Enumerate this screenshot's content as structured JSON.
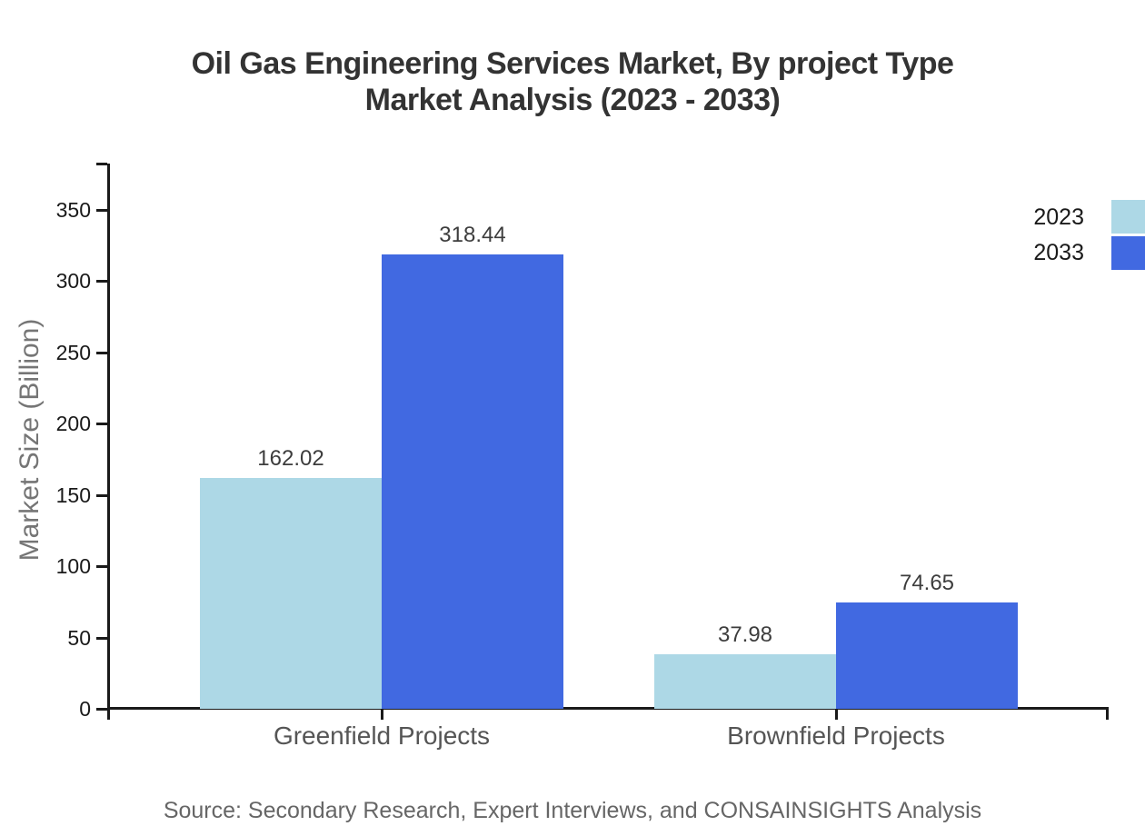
{
  "title": {
    "line1": "Oil Gas Engineering Services Market, By project Type",
    "line2": "Market Analysis (2023 - 2033)"
  },
  "source": "Source: Secondary Research, Expert Interviews, and CONSAINSIGHTS Analysis",
  "chart_data": {
    "type": "bar",
    "title": "Oil Gas Engineering Services Market, By project Type Market Analysis (2023 - 2033)",
    "categories": [
      "Greenfield Projects",
      "Brownfield Projects"
    ],
    "series": [
      {
        "name": "2023",
        "color": "#ADD8E6",
        "values": [
          162.02,
          37.98
        ]
      },
      {
        "name": "2033",
        "color": "#4169E1",
        "values": [
          318.44,
          74.65
        ]
      }
    ],
    "xlabel": "",
    "ylabel": "Market Size (Billion)",
    "ylim": [
      0,
      382.5
    ],
    "yticks": [
      0,
      50,
      100,
      150,
      200,
      250,
      300,
      350
    ],
    "grid": false,
    "legend_position": "top-right",
    "value_labels_decimals": 2,
    "colors": {
      "title": "#333333",
      "value_label": "#3d3d3d",
      "tick_label": "#1a1a1a",
      "axis": "#1a1a1a",
      "category_label": "#555555",
      "ylabel": "#757575",
      "source": "#666666",
      "background": "#ffffff"
    }
  }
}
